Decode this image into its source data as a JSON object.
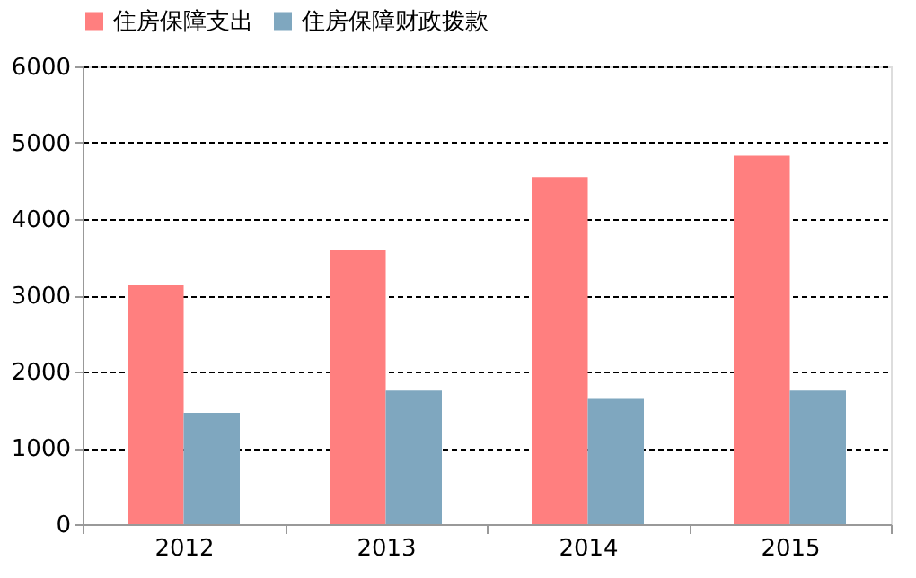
{
  "chart_data": {
    "type": "bar",
    "categories": [
      "2012",
      "2013",
      "2014",
      "2015"
    ],
    "series": [
      {
        "name": "住房保障支出",
        "color": "#ff7f7f",
        "values": [
          3130,
          3600,
          4550,
          4830
        ]
      },
      {
        "name": "住房保障财政拨款",
        "color": "#7fa7bf",
        "values": [
          1460,
          1750,
          1640,
          1750
        ]
      }
    ],
    "ylim": [
      0,
      6000
    ],
    "yticks": [
      0,
      1000,
      2000,
      3000,
      4000,
      5000,
      6000
    ],
    "grid": "y",
    "legend": "top"
  }
}
